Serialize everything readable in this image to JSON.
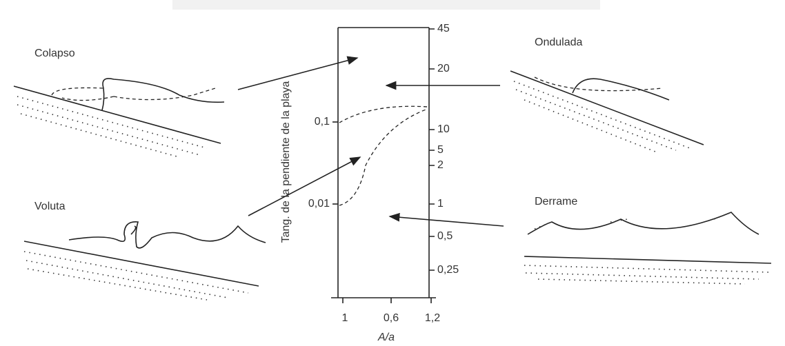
{
  "breakers": [
    {
      "label": "Colapso"
    },
    {
      "label": "Ondulada"
    },
    {
      "label": "Voluta"
    },
    {
      "label": "Derrame"
    }
  ],
  "left_axis": {
    "label": "Tang. de la pendiente de la playa",
    "ticks": [
      "0,1",
      "0,01"
    ]
  },
  "right_axis": {
    "ticks": [
      "45",
      "20",
      "10",
      "5",
      "2",
      "1",
      "0,5",
      "0,25"
    ]
  },
  "bottom_axis": {
    "label": "A/a",
    "ticks": [
      "1",
      "0,6",
      "1,2"
    ]
  }
}
